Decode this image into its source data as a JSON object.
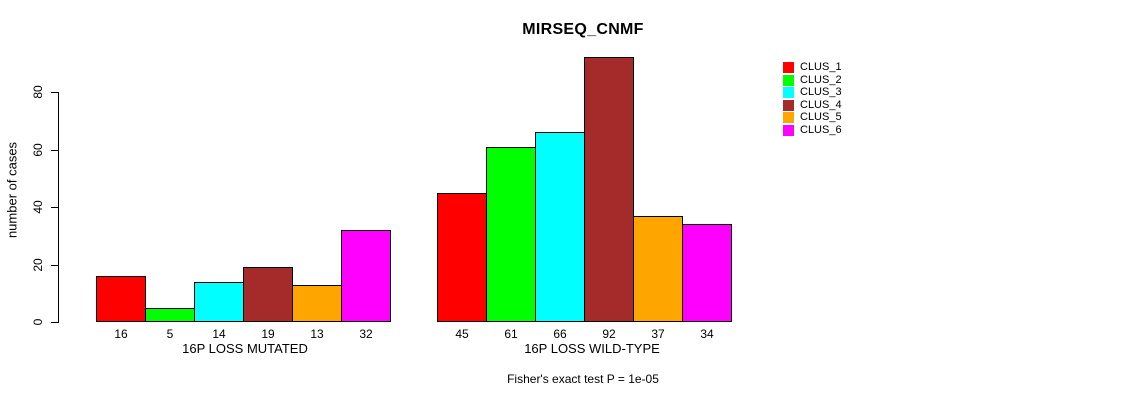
{
  "chart_data": {
    "type": "bar",
    "title": "MIRSEQ_CNMF",
    "ylabel": "number of cases",
    "xlabel": "",
    "yticks": [
      0,
      20,
      40,
      60,
      80
    ],
    "ylim": [
      0,
      92
    ],
    "grid": false,
    "legend_position": "right",
    "categories": [
      "16P LOSS MUTATED",
      "16P LOSS WILD-TYPE"
    ],
    "series": [
      {
        "name": "CLUS_1",
        "color": "#FF0000",
        "values": [
          16,
          45
        ]
      },
      {
        "name": "CLUS_2",
        "color": "#00FF00",
        "values": [
          5,
          61
        ]
      },
      {
        "name": "CLUS_3",
        "color": "#00FFFF",
        "values": [
          14,
          66
        ]
      },
      {
        "name": "CLUS_4",
        "color": "#A52A2A",
        "values": [
          19,
          92
        ]
      },
      {
        "name": "CLUS_5",
        "color": "#FFA500",
        "values": [
          13,
          37
        ]
      },
      {
        "name": "CLUS_6",
        "color": "#FF00FF",
        "values": [
          32,
          34
        ]
      }
    ],
    "bar_value_labels": {
      "16P LOSS MUTATED": [
        16,
        5,
        14,
        19,
        13,
        32
      ],
      "16P LOSS WILD-TYPE": [
        45,
        61,
        66,
        92,
        37,
        34
      ]
    },
    "footnote": "Fisher's exact test P = 1e-05",
    "colors": {
      "axis": "#000000",
      "text": "#000000",
      "background": "#FFFFFF"
    }
  }
}
